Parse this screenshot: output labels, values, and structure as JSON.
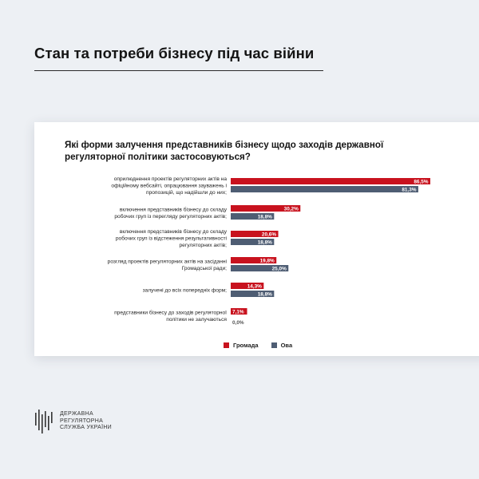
{
  "page": {
    "title": "Стан та потреби бізнесу під час війни"
  },
  "colors": {
    "background": "#edf0f4",
    "series_primary": "#c8121e",
    "series_secondary": "#4e5d73"
  },
  "chart_data": {
    "type": "bar",
    "orientation": "horizontal",
    "title": "Які форми залучення представників бізнесу щодо заходів державної регуляторної політики застосовуються?",
    "categories": [
      "оприлюднення проектів регуляторних актів на офіційному вебсайті, опрацювання зауважень і пропозицій, що надійшли до них;",
      "включення представників бізнесу до складу робочих груп із перегляду регуляторних актів;",
      "включення представників бізнесу до складу робочих груп із відстеження результативності регуляторних актів;",
      "розгляд проектів регуляторних актів на засіданні Громадської ради;",
      "залучені до всіх попередніх форм;",
      "представники бізнесу до заходів регуляторної політики не залучаються"
    ],
    "category_lines": [
      [
        "оприлюднення проектів регуляторних актів на",
        "офіційному вебсайті, опрацювання зауважень і",
        "пропозицій, що надійшли до них;"
      ],
      [
        "включення представників бізнесу до складу",
        "робочих груп із перегляду регуляторних актів;"
      ],
      [
        "включення представників бізнесу до складу",
        "робочих груп із відстеження результативності",
        "регуляторних актів;"
      ],
      [
        "розгляд проектів регуляторних актів на засіданні",
        "Громадської ради;"
      ],
      [
        "залучені до всіх попередніх форм;"
      ],
      [
        "представники бізнесу до заходів регуляторної",
        "політики не залучаються"
      ]
    ],
    "series": [
      {
        "name": "Громада",
        "color": "#c8121e",
        "values": [
          86.5,
          30.2,
          20.6,
          19.8,
          14.3,
          7.1
        ],
        "labels": [
          "86,5%",
          "30,2%",
          "20,6%",
          "19,8%",
          "14,3%",
          "7,1%"
        ]
      },
      {
        "name": "Ова",
        "color": "#4e5d73",
        "values": [
          81.3,
          18.8,
          18.8,
          25.0,
          18.8,
          0.0
        ],
        "labels": [
          "81,3%",
          "18,8%",
          "18,8%",
          "25,0%",
          "18,8%",
          "0,0%"
        ]
      }
    ],
    "xlim": [
      0,
      100
    ],
    "grid": false,
    "legend_position": "bottom"
  },
  "logo": {
    "lines": [
      "ДЕРЖАВНА",
      "РЕГУЛЯТОРНА",
      "СЛУЖБА УКРАЇНИ"
    ]
  }
}
